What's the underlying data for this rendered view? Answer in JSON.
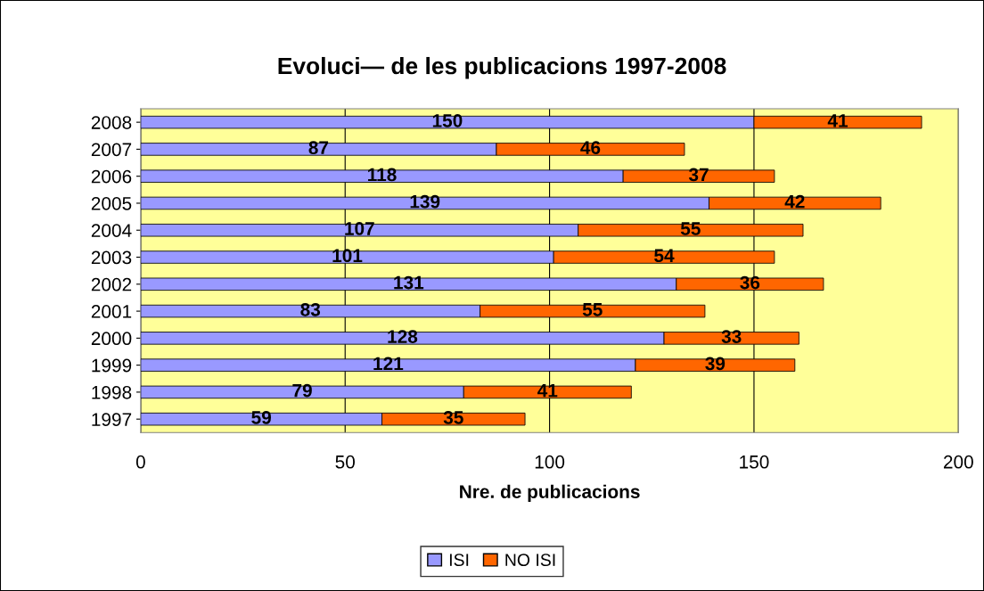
{
  "chart_data": {
    "type": "bar",
    "orientation": "horizontal",
    "stacked": true,
    "title": "Evoluci— de les publicacions 1997-2008",
    "xlabel": "Nre. de publicacions",
    "categories": [
      "2008",
      "2007",
      "2006",
      "2005",
      "2004",
      "2003",
      "2002",
      "2001",
      "2000",
      "1999",
      "1998",
      "1997"
    ],
    "series": [
      {
        "name": "ISI",
        "color": "#9999ff",
        "values": [
          150,
          87,
          118,
          139,
          107,
          101,
          131,
          83,
          128,
          121,
          79,
          59
        ]
      },
      {
        "name": "NO ISI",
        "color": "#ff6600",
        "values": [
          41,
          46,
          37,
          42,
          55,
          54,
          36,
          55,
          33,
          39,
          41,
          35
        ]
      }
    ],
    "xlim": [
      0,
      200
    ],
    "xticks": [
      0,
      50,
      100,
      150,
      200
    ],
    "grid": "x",
    "legend": "bottom",
    "data_labels": true
  }
}
